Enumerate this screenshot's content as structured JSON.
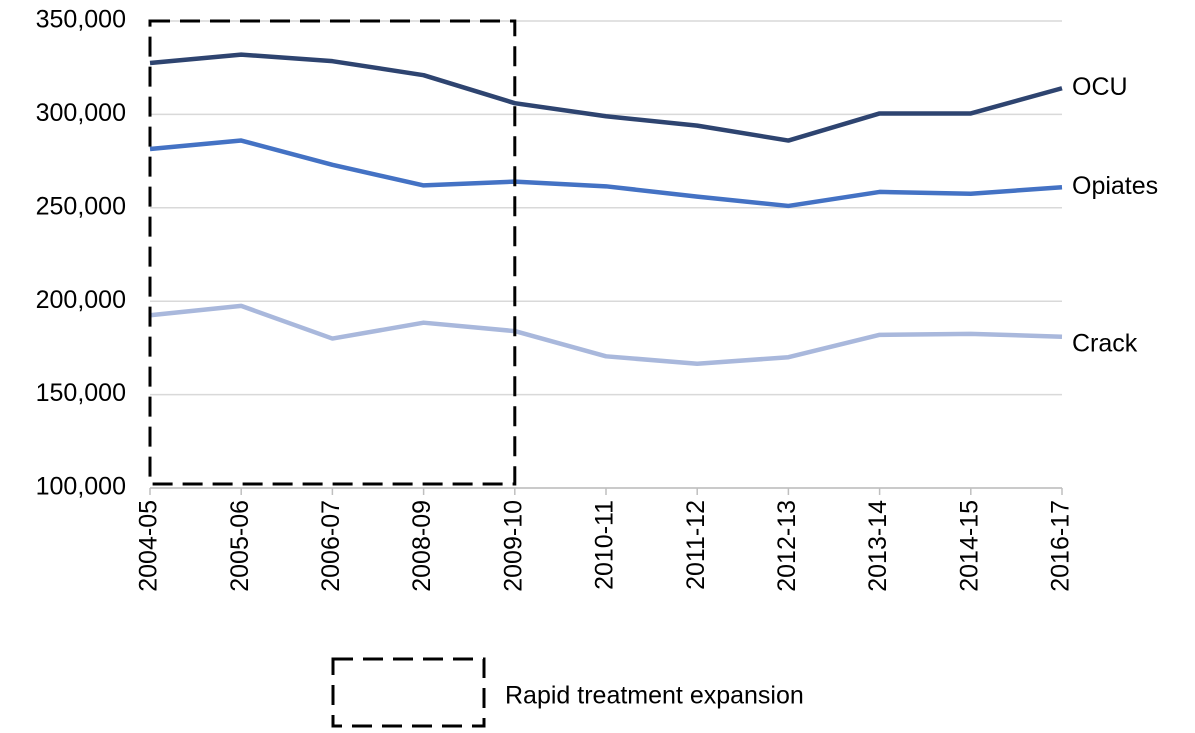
{
  "chart_data": {
    "type": "line",
    "categories": [
      "2004-05",
      "2005-06",
      "2006-07",
      "2008-09",
      "2009-10",
      "2010-11",
      "2011-12",
      "2012-13",
      "2013-14",
      "2014-15",
      "2016-17"
    ],
    "series": [
      {
        "name": "OCU",
        "color": "#2e4470",
        "values": [
          327500,
          332000,
          328500,
          321000,
          306000,
          299000,
          294000,
          286000,
          300500,
          300500,
          314000
        ]
      },
      {
        "name": "Opiates",
        "color": "#4472c4",
        "values": [
          281500,
          286000,
          273000,
          262000,
          264000,
          261500,
          256000,
          251000,
          258500,
          257500,
          261000
        ]
      },
      {
        "name": "Crack",
        "color": "#a9b8dc",
        "values": [
          192500,
          197500,
          180000,
          188500,
          184000,
          170500,
          166500,
          170000,
          182000,
          182500,
          181000
        ]
      }
    ],
    "ylim": [
      100000,
      350000
    ],
    "yticks": [
      {
        "value": 100000,
        "label": "100,000"
      },
      {
        "value": 150000,
        "label": "150,000"
      },
      {
        "value": 200000,
        "label": "200,000"
      },
      {
        "value": 250000,
        "label": "250,000"
      },
      {
        "value": 300000,
        "label": "300,000"
      },
      {
        "value": 350000,
        "label": "350,000"
      }
    ],
    "grid": true,
    "highlight": {
      "x_start": "2004-05",
      "x_end": "2009-10",
      "label": "Rapid treatment expansion"
    }
  }
}
